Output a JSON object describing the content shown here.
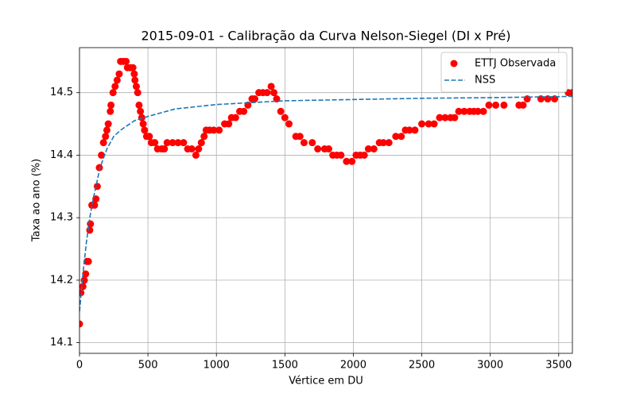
{
  "chart_data": {
    "type": "scatter",
    "title": "2015-09-01 - Calibração da Curva Nelson-Siegel (DI x Pré)",
    "xlabel": "Vértice em DU",
    "ylabel": "Taxa ao ano (%)",
    "xlim": [
      0,
      3600
    ],
    "ylim": [
      14.083,
      14.572
    ],
    "xticks": [
      0,
      500,
      1000,
      1500,
      2000,
      2500,
      3000,
      3500
    ],
    "yticks": [
      14.1,
      14.2,
      14.3,
      14.4,
      14.5
    ],
    "grid": true,
    "legend": "upper right",
    "series": [
      {
        "name": "ETTJ Observada",
        "type": "scatter",
        "color": "#ff0000",
        "x": [
          0,
          10,
          25,
          35,
          45,
          55,
          65,
          75,
          80,
          90,
          110,
          120,
          130,
          145,
          160,
          175,
          190,
          200,
          210,
          225,
          230,
          245,
          260,
          275,
          290,
          300,
          320,
          340,
          350,
          370,
          390,
          400,
          405,
          415,
          425,
          435,
          445,
          455,
          465,
          475,
          490,
          510,
          525,
          550,
          570,
          600,
          620,
          640,
          680,
          720,
          760,
          790,
          820,
          850,
          870,
          890,
          910,
          925,
          950,
          980,
          1020,
          1060,
          1090,
          1110,
          1140,
          1170,
          1200,
          1230,
          1260,
          1280,
          1310,
          1340,
          1370,
          1400,
          1420,
          1440,
          1470,
          1500,
          1530,
          1580,
          1610,
          1640,
          1700,
          1740,
          1790,
          1820,
          1850,
          1880,
          1910,
          1950,
          1990,
          2020,
          2050,
          2080,
          2110,
          2150,
          2190,
          2220,
          2260,
          2310,
          2350,
          2380,
          2410,
          2450,
          2500,
          2550,
          2590,
          2630,
          2670,
          2710,
          2740,
          2770,
          2810,
          2850,
          2880,
          2910,
          2950,
          2990,
          3040,
          3100,
          3210,
          3240,
          3270,
          3370,
          3420,
          3470,
          3570,
          3600
        ],
        "values": [
          14.13,
          14.18,
          14.19,
          14.2,
          14.21,
          14.23,
          14.23,
          14.28,
          14.29,
          14.32,
          14.32,
          14.33,
          14.35,
          14.38,
          14.4,
          14.42,
          14.43,
          14.44,
          14.45,
          14.47,
          14.48,
          14.5,
          14.51,
          14.52,
          14.53,
          14.55,
          14.55,
          14.55,
          14.54,
          14.54,
          14.54,
          14.53,
          14.52,
          14.51,
          14.5,
          14.48,
          14.47,
          14.46,
          14.45,
          14.44,
          14.43,
          14.43,
          14.42,
          14.42,
          14.41,
          14.41,
          14.41,
          14.42,
          14.42,
          14.42,
          14.42,
          14.41,
          14.41,
          14.4,
          14.41,
          14.42,
          14.43,
          14.44,
          14.44,
          14.44,
          14.44,
          14.45,
          14.45,
          14.46,
          14.46,
          14.47,
          14.47,
          14.48,
          14.49,
          14.49,
          14.5,
          14.5,
          14.5,
          14.51,
          14.5,
          14.49,
          14.47,
          14.46,
          14.45,
          14.43,
          14.43,
          14.42,
          14.42,
          14.41,
          14.41,
          14.41,
          14.4,
          14.4,
          14.4,
          14.39,
          14.39,
          14.4,
          14.4,
          14.4,
          14.41,
          14.41,
          14.42,
          14.42,
          14.42,
          14.43,
          14.43,
          14.44,
          14.44,
          14.44,
          14.45,
          14.45,
          14.45,
          14.46,
          14.46,
          14.46,
          14.46,
          14.47,
          14.47,
          14.47,
          14.47,
          14.47,
          14.47,
          14.48,
          14.48,
          14.48,
          14.48,
          14.48,
          14.49,
          14.49,
          14.49,
          14.49,
          14.5,
          14.5
        ]
      },
      {
        "name": "NSS",
        "type": "line",
        "linestyle": "dashed",
        "color": "#1f77b4",
        "x": [
          0,
          25,
          50,
          75,
          100,
          150,
          200,
          250,
          300,
          400,
          500,
          700,
          1000,
          1500,
          2000,
          2500,
          3000,
          3600
        ],
        "values": [
          14.15,
          14.21,
          14.26,
          14.3,
          14.33,
          14.38,
          14.41,
          14.43,
          14.44,
          14.455,
          14.462,
          14.474,
          14.481,
          14.487,
          14.489,
          14.491,
          14.492,
          14.494
        ]
      }
    ]
  }
}
